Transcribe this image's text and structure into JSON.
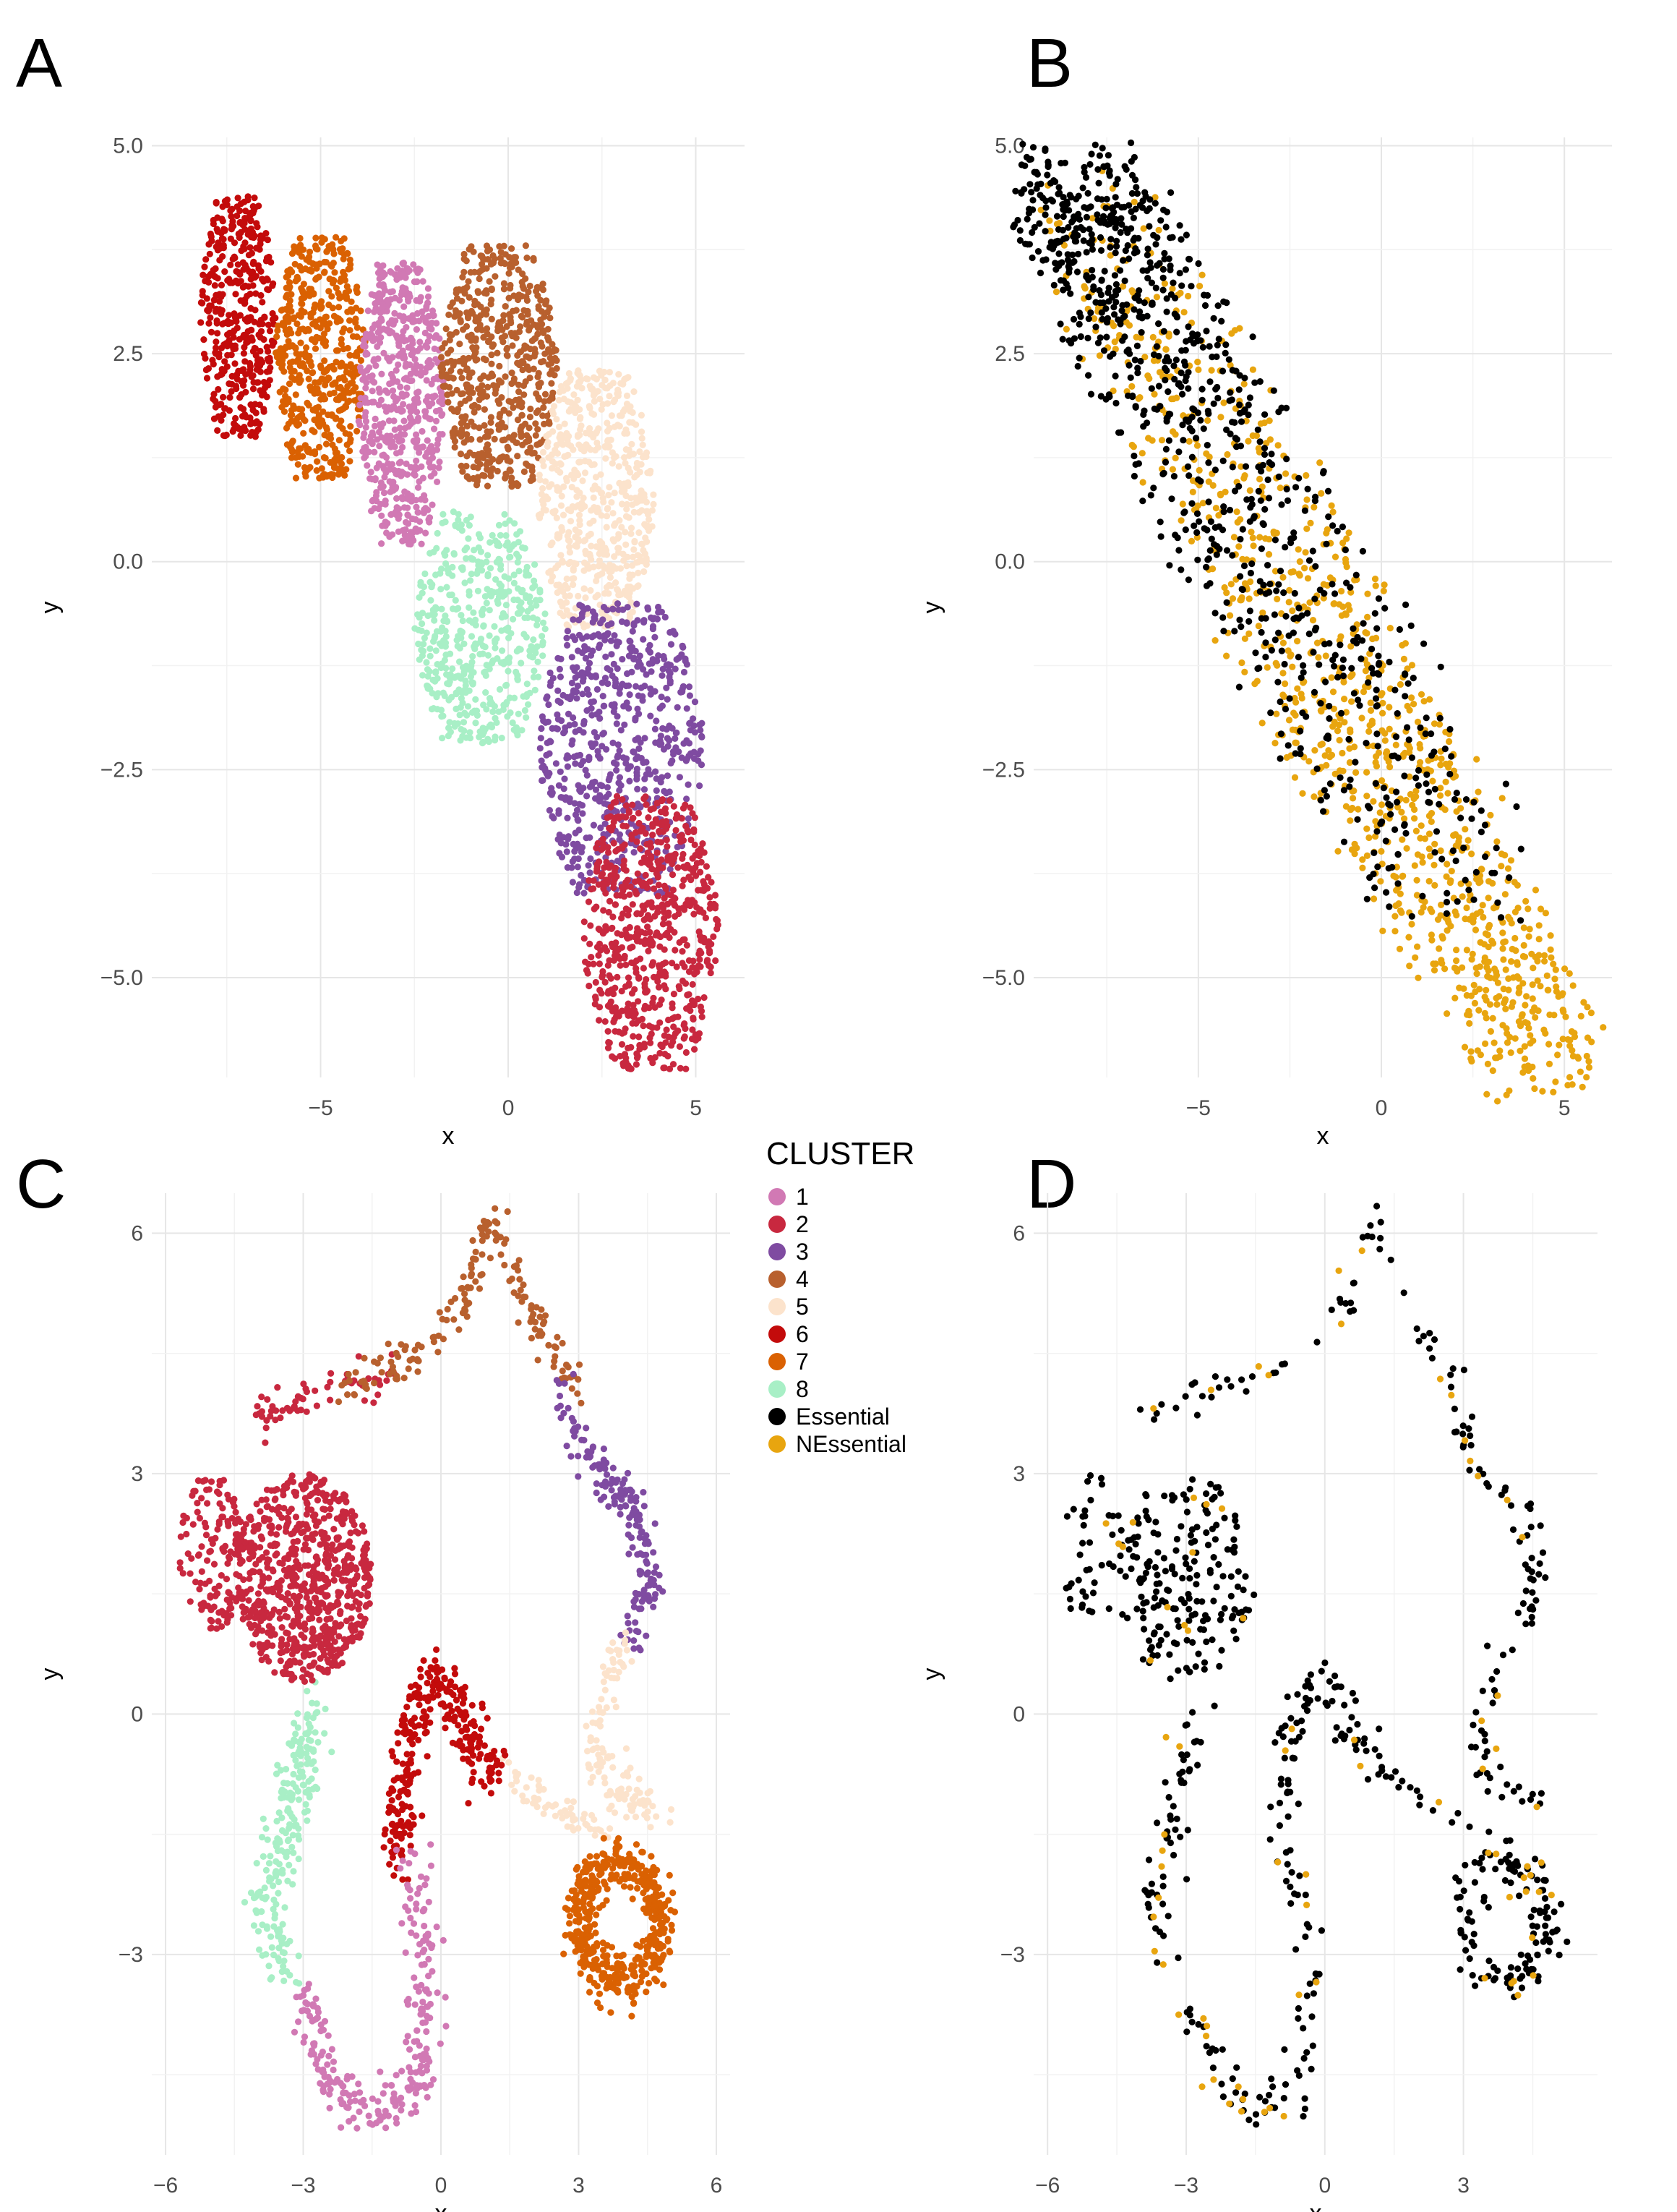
{
  "figure": {
    "panel_labels": [
      "A",
      "B",
      "C",
      "D"
    ]
  },
  "legend": {
    "title": "CLUSTER",
    "entries": [
      {
        "label": "1",
        "color": "#D179B4"
      },
      {
        "label": "2",
        "color": "#C8283F"
      },
      {
        "label": "3",
        "color": "#7F4BA1"
      },
      {
        "label": "4",
        "color": "#B8602E"
      },
      {
        "label": "5",
        "color": "#FCE3CC"
      },
      {
        "label": "6",
        "color": "#C30B0B"
      },
      {
        "label": "7",
        "color": "#DA6102"
      },
      {
        "label": "8",
        "color": "#A8EFC6"
      },
      {
        "label": "Essential",
        "color": "#000000"
      },
      {
        "label": "NEssential",
        "color": "#E8A50F"
      }
    ]
  },
  "chart_data": [
    {
      "id": "A",
      "type": "scatter",
      "xlabel": "x",
      "ylabel": "y",
      "xlim": [
        -9.5,
        6.3
      ],
      "ylim": [
        -6.2,
        5.1
      ],
      "xticks": [
        -5,
        0,
        5
      ],
      "xtick_labels": [
        "−5",
        "0",
        "5"
      ],
      "yticks": [
        5.0,
        2.5,
        0.0,
        -2.5,
        -5.0
      ],
      "ytick_labels": [
        "5.0",
        "2.5",
        "0.0",
        "−2.5",
        "−5.0"
      ],
      "color_by": "cluster",
      "clusters": [
        {
          "label": "6",
          "x": [
            -8.2,
            -6.2
          ],
          "y": [
            1.5,
            4.4
          ],
          "n": 420
        },
        {
          "label": "7",
          "x": [
            -6.2,
            -3.8
          ],
          "y": [
            1.0,
            3.9
          ],
          "n": 520
        },
        {
          "label": "1",
          "x": [
            -4.0,
            -1.7
          ],
          "y": [
            0.2,
            3.6
          ],
          "n": 560
        },
        {
          "label": "4",
          "x": [
            -1.8,
            1.3
          ],
          "y": [
            0.9,
            3.8
          ],
          "n": 560
        },
        {
          "label": "5",
          "x": [
            0.8,
            3.9
          ],
          "y": [
            -0.8,
            2.3
          ],
          "n": 560
        },
        {
          "label": "8",
          "x": [
            -2.5,
            1.0
          ],
          "y": [
            -2.2,
            0.6
          ],
          "n": 480
        },
        {
          "label": "3",
          "x": [
            0.8,
            5.2
          ],
          "y": [
            -4.0,
            -0.5
          ],
          "n": 640
        },
        {
          "label": "2",
          "x": [
            2.0,
            5.6
          ],
          "y": [
            -6.1,
            -2.8
          ],
          "n": 640
        }
      ]
    },
    {
      "id": "B",
      "type": "scatter",
      "xlabel": "x",
      "ylabel": "y",
      "xlim": [
        -9.5,
        6.3
      ],
      "ylim": [
        -6.2,
        5.1
      ],
      "xticks": [
        -5,
        0,
        5
      ],
      "xtick_labels": [
        "−5",
        "0",
        "5"
      ],
      "yticks": [
        5.0,
        2.5,
        0.0,
        -2.5,
        -5.0
      ],
      "ytick_labels": [
        "5.0",
        "2.5",
        "0.0",
        "−2.5",
        "−5.0"
      ],
      "color_by": "essentiality",
      "groups": [
        {
          "label": "Essential",
          "x": [
            -8.5,
            4.0
          ],
          "y": [
            -3.5,
            4.5
          ],
          "n": 900
        },
        {
          "label": "NEssential",
          "x": [
            -6.5,
            5.6
          ],
          "y": [
            -6.1,
            3.7
          ],
          "n": 1000
        }
      ]
    },
    {
      "id": "C",
      "type": "scatter",
      "xlabel": "x",
      "ylabel": "y",
      "xlim": [
        -6.3,
        6.3
      ],
      "ylim": [
        -5.5,
        6.5
      ],
      "xticks": [
        -6,
        -3,
        0,
        3,
        6
      ],
      "xtick_labels": [
        "−6",
        "−3",
        "0",
        "3",
        "6"
      ],
      "yticks": [
        6,
        3,
        0,
        -3
      ],
      "ytick_labels": [
        "6",
        "3",
        "0",
        "−3"
      ],
      "color_by": "cluster",
      "curves": [
        {
          "label": "2",
          "path": [
            [
              -4.0,
              3.7
            ],
            [
              -2.0,
              4.1
            ],
            [
              -1.0,
              4.2
            ]
          ],
          "spread": 0.12,
          "n": 60
        },
        {
          "label": "4",
          "path": [
            [
              -2.2,
              4.1
            ],
            [
              -0.5,
              4.5
            ],
            [
              0.6,
              5.2
            ],
            [
              1.0,
              6.2
            ],
            [
              1.6,
              5.5
            ],
            [
              2.2,
              4.7
            ],
            [
              3.0,
              4.0
            ]
          ],
          "spread": 0.12,
          "n": 170
        },
        {
          "label": "3",
          "path": [
            [
              2.7,
              4.0
            ],
            [
              3.4,
              3.0
            ],
            [
              4.2,
              2.6
            ],
            [
              4.6,
              1.7
            ],
            [
              4.1,
              0.9
            ]
          ],
          "spread": 0.14,
          "n": 170
        },
        {
          "label": "5",
          "path": [
            [
              3.9,
              0.8
            ],
            [
              3.3,
              -0.3
            ],
            [
              3.7,
              -0.9
            ],
            [
              4.7,
              -1.2
            ]
          ],
          "spread": 0.14,
          "n": 120
        },
        {
          "label": "5",
          "path": [
            [
              1.1,
              -0.6
            ],
            [
              2.5,
              -1.2
            ],
            [
              3.6,
              -1.5
            ]
          ],
          "spread": 0.1,
          "n": 60
        },
        {
          "label": "6",
          "path": [
            [
              -1.0,
              -1.8
            ],
            [
              -0.7,
              -0.2
            ],
            [
              -0.2,
              0.5
            ],
            [
              0.2,
              0.3
            ],
            [
              0.8,
              -0.5
            ],
            [
              1.3,
              -0.7
            ]
          ],
          "spread": 0.18,
          "n": 280
        },
        {
          "label": "8",
          "path": [
            [
              -2.8,
              0.2
            ],
            [
              -3.2,
              -1.2
            ],
            [
              -3.8,
              -2.3
            ],
            [
              -3.4,
              -3.2
            ]
          ],
          "spread": 0.2,
          "n": 220
        },
        {
          "label": "1",
          "path": [
            [
              -3.0,
              -3.5
            ],
            [
              -2.5,
              -4.5
            ],
            [
              -1.5,
              -5.0
            ],
            [
              -0.5,
              -4.6
            ],
            [
              -0.3,
              -3.0
            ],
            [
              -0.6,
              -1.8
            ]
          ],
          "spread": 0.18,
          "n": 250
        }
      ],
      "blobs": [
        {
          "label": "2",
          "cx": -3.0,
          "cy": 1.7,
          "rx": 1.5,
          "ry": 1.3,
          "n": 700
        },
        {
          "label": "2",
          "cx": -5.0,
          "cy": 2.0,
          "rx": 0.7,
          "ry": 1.0,
          "n": 130
        },
        {
          "label": "7",
          "ring": true,
          "cx": 3.9,
          "cy": -2.6,
          "rx": 1.2,
          "ry": 1.0,
          "n": 450
        }
      ]
    },
    {
      "id": "D",
      "type": "scatter",
      "xlabel": "x",
      "ylabel": "y",
      "xlim": [
        -6.3,
        5.9
      ],
      "ylim": [
        -5.5,
        6.5
      ],
      "xticks": [
        -6,
        -3,
        0,
        3
      ],
      "xtick_labels": [
        "−6",
        "−3",
        "0",
        "3"
      ],
      "yticks": [
        6,
        3,
        0,
        -3
      ],
      "ytick_labels": [
        "6",
        "3",
        "0",
        "−3"
      ],
      "color_by": "essentiality",
      "groups": [
        {
          "label": "Essential",
          "x": [
            -5.8,
            5.6
          ],
          "y": [
            -5.2,
            6.0
          ],
          "n": 700
        },
        {
          "label": "NEssential",
          "x": [
            -5.6,
            5.2
          ],
          "y": [
            -3.8,
            6.1
          ],
          "n": 80
        }
      ]
    }
  ]
}
